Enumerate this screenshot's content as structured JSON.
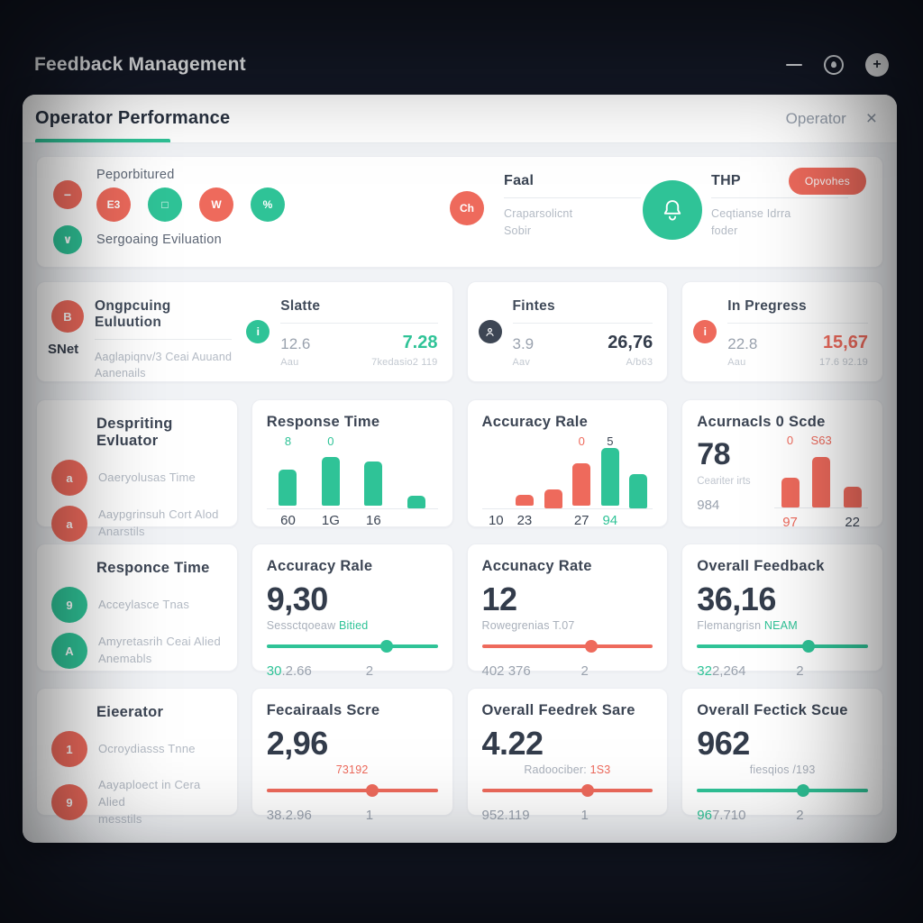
{
  "colors": {
    "red": "#ee6a5c",
    "green": "#2fc397",
    "dark": "#3c4554",
    "gray": "#9aa2ae"
  },
  "window": {
    "title": "Feedback Management"
  },
  "panel": {
    "title": "Operator Performance",
    "header_right": "Operator",
    "close_glyph": "×"
  },
  "overview": {
    "top_left_label": "Peporbitured",
    "bottom_left_label": "Sergoaing Eviluation",
    "left_badge_top": "−",
    "left_badge_bottom": "∨",
    "icon_badges": [
      {
        "glyph": "E3",
        "color": "red"
      },
      {
        "glyph": "□",
        "color": "green"
      },
      {
        "glyph": "W",
        "color": "red"
      },
      {
        "glyph": "%",
        "color": "green"
      }
    ],
    "ch_badge": "Ch",
    "sections": [
      {
        "title": "Faal",
        "line1": "Craparsolicnt",
        "line2": "Sobir"
      },
      {
        "title": "THP",
        "line1": "Ceqtianse Idrra",
        "line2": "foder"
      }
    ],
    "action_button": "Opvohes"
  },
  "stats": {
    "evaluation": {
      "badge": "B",
      "title": "Ongpcuing Euluution",
      "side_label": "SNet",
      "desc1": "Aaglapiqnv/3 Ceai Auuand",
      "desc2": "Aanenails"
    },
    "slate": {
      "badge": "i",
      "title": "Slatte",
      "left_value": "12.6",
      "left_caption": "Aau",
      "right_value": "7.28",
      "right_caption": "7kedasio2 119"
    },
    "fines": {
      "title": "Fintes",
      "left_value": "3.9",
      "left_caption": "Aav",
      "right_value": "26,76",
      "right_caption": "A/b63"
    },
    "in_progress": {
      "badge": "i",
      "title": "In Pregress",
      "left_value": "22.8",
      "left_caption": "Aau",
      "right_value": "15,67",
      "right_caption": "17.6 92.19"
    }
  },
  "cards": {
    "evaluator_list": {
      "title": "Despriting Evluator",
      "items": [
        {
          "badge": "a",
          "color": "red",
          "line1": "Oaeryolusas Time",
          "line2": ""
        },
        {
          "badge": "a",
          "color": "red",
          "line1": "Aaypgrinsuh Cort Alod",
          "line2": "Anarstils"
        }
      ]
    },
    "response_time_chart": {
      "title": "Response Time",
      "type": "bar",
      "slots": [
        {
          "v": 62,
          "c": "green",
          "t": "8",
          "tc": "green",
          "x": "60"
        },
        {
          "v": 84,
          "c": "green",
          "t": "0",
          "tc": "green",
          "x": "1G"
        },
        {
          "v": 76,
          "c": "green",
          "x": "16"
        },
        {
          "v": 22,
          "c": "green",
          "x": ""
        }
      ]
    },
    "accuracy_rate_chart": {
      "title": "Accuracy Rale",
      "type": "bar",
      "slots": [
        {
          "v": 0,
          "x": "10"
        },
        {
          "v": 18,
          "c": "red",
          "x": "23"
        },
        {
          "v": 33,
          "c": "red",
          "x": ""
        },
        {
          "v": 74,
          "c": "red",
          "t": "0",
          "tc": "red",
          "x": "27"
        },
        {
          "v": 100,
          "c": "green",
          "t": "5",
          "tc": "dark",
          "x": "94",
          "xc": "green"
        },
        {
          "v": 60,
          "c": "green",
          "x": ""
        }
      ]
    },
    "accuracy_score": {
      "title": "Acurnacls 0 Scde",
      "type": "bar",
      "big_value": "78",
      "big_caption": "Ceariter irts",
      "bottom_left": "984",
      "slots": [
        {
          "v": 52,
          "c": "red",
          "t": "0",
          "tc": "red",
          "x": "97",
          "xc": "red"
        },
        {
          "v": 88,
          "c": "red",
          "t": "S63",
          "tc": "red",
          "x": ""
        },
        {
          "v": 36,
          "c": "red",
          "x": "22"
        }
      ]
    },
    "response_list": {
      "title": "Responce Time",
      "items": [
        {
          "badge": "9",
          "color": "green",
          "line1": "Acceylasce Tnas",
          "line2": ""
        },
        {
          "badge": "A",
          "color": "green",
          "line1": "Amyretasrih Ceai Alied",
          "line2": "Anemabls"
        }
      ]
    },
    "accuracy_slider_1": {
      "title": "Accuracy Rale",
      "value": "9,30",
      "cap1": "Sessctqoeaw ",
      "cap2": "Bitied",
      "cap2_color": "green",
      "cap_align": "left",
      "slider": {
        "pct": 70,
        "color": "green"
      },
      "bl_prefix": "30",
      "bl_prefix_color": "green",
      "bl_rest": ".2.66",
      "br": "2"
    },
    "accuracy_slider_2": {
      "title": "Accunacy Rate",
      "value": "12",
      "cap1": "Rowegrenias T.07",
      "cap_align": "left",
      "slider": {
        "pct": 64,
        "color": "red"
      },
      "bl_prefix": "",
      "bl_rest": "402 376",
      "br": "2"
    },
    "overall_feedback": {
      "title": "Overall Feedback",
      "value": "36,16",
      "cap1": "Flemangrisn ",
      "cap2": "NEAM",
      "cap2_color": "green",
      "cap_align": "left",
      "slider": {
        "pct": 65,
        "color": "green"
      },
      "bl_prefix": "32",
      "bl_prefix_color": "green",
      "bl_rest": "2,264",
      "br": "2"
    },
    "elevator_list": {
      "title": "Eieerator",
      "items": [
        {
          "badge": "1",
          "color": "red",
          "line1": "Ocroydiasss Tnne",
          "line2": ""
        },
        {
          "badge": "9",
          "color": "red",
          "line1": "Aayaploect in Cera Alied",
          "line2": "messtils"
        }
      ]
    },
    "feedback_score": {
      "title": "Fecairaals Scre",
      "value": "2,96",
      "cap1": "",
      "cap2": "73192",
      "cap2_color": "red",
      "cap_align": "center",
      "slider": {
        "pct": 62,
        "color": "red"
      },
      "bl_prefix": "",
      "bl_rest": "38.2.96",
      "br": "1"
    },
    "overall_feedback_score_1": {
      "title": "Overall Feedrek Sare",
      "value": "4.22",
      "cap1": "Radoociber: ",
      "cap2": "1S3",
      "cap2_color": "red",
      "cap_align": "center",
      "slider": {
        "pct": 62,
        "color": "red"
      },
      "bl_prefix": "",
      "bl_rest": "952.119",
      "br": "1"
    },
    "overall_feedback_score_2": {
      "title": "Overall Fectick Scue",
      "value": "962",
      "cap1": "fiesqios /193",
      "cap_align": "center",
      "slider": {
        "pct": 62,
        "color": "green"
      },
      "bl_prefix": "96",
      "bl_prefix_color": "green",
      "bl_rest": "7.710",
      "br": "2"
    }
  }
}
